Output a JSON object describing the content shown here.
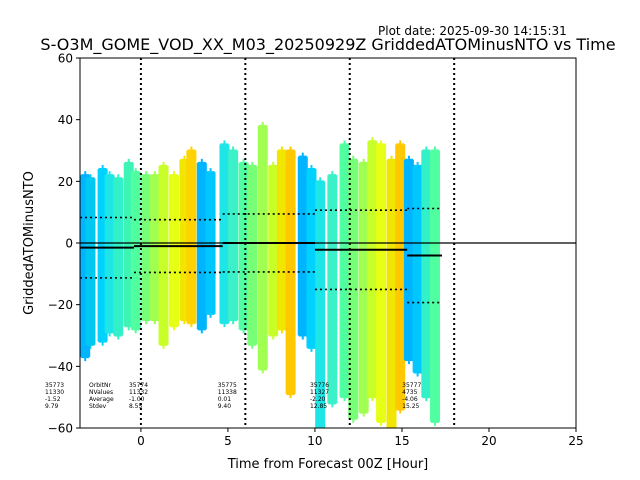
{
  "chart_data": {
    "type": "scatter",
    "plot_date": "Plot date: 2025-09-30 14:15:31",
    "title": "S-O3M_GOME_VOD_XX_M03_20250929Z GriddedATOMinusNTO vs Time",
    "xlabel": "Time from Forecast 00Z [Hour]",
    "ylabel": "GriddedATOMinusNTO",
    "xlim": [
      -3.5,
      25
    ],
    "ylim": [
      -60,
      60
    ],
    "xticks": [
      "0",
      "5",
      "10",
      "15",
      "20",
      "25"
    ],
    "xtick_values": [
      0,
      5,
      10,
      15,
      20,
      25
    ],
    "yticks": [
      "60",
      "40",
      "20",
      "0",
      "−20",
      "−40",
      "−60"
    ],
    "ytick_values": [
      60,
      40,
      20,
      0,
      -20,
      -40,
      -60
    ],
    "zero_line": 0,
    "vertical_dotted_lines": [
      0,
      6,
      12,
      18
    ],
    "mean_line_color": "#000000",
    "orbits": [
      {
        "orbit": "35773",
        "nvalues": "11330",
        "average": "-1.52",
        "stdev": "9.79",
        "x_start": -3.5,
        "x_end": -0.4,
        "mean": -1.52,
        "sd": 9.79
      },
      {
        "orbit": "35774",
        "nvalues": "11332",
        "average": "-1.00",
        "stdev": "8.55",
        "x_start": -0.4,
        "x_end": 4.7,
        "mean": -1.0,
        "sd": 8.55
      },
      {
        "orbit": "35775",
        "nvalues": "11338",
        "average": "0.01",
        "stdev": "9.40",
        "x_start": 4.7,
        "x_end": 10.0,
        "mean": 0.01,
        "sd": 9.4
      },
      {
        "orbit": "35776",
        "nvalues": "11327",
        "average": "-2.20",
        "stdev": "12.85",
        "x_start": 10.0,
        "x_end": 15.3,
        "mean": -2.2,
        "sd": 12.85
      },
      {
        "orbit": "35777",
        "nvalues": "4735",
        "average": "-4.06",
        "stdev": "15.25",
        "x_start": 15.3,
        "x_end": 17.3,
        "mean": -4.06,
        "sd": 15.25
      }
    ],
    "stats_legend": {
      "labels": [
        "OrbitNr",
        "NValues",
        "Average",
        "Stdev"
      ]
    },
    "point_columns": [
      {
        "x": -3.2,
        "min": -37,
        "max": 22,
        "color": "#00b4ff"
      },
      {
        "x": -2.9,
        "min": -33,
        "max": 21,
        "color": "#00c8f0"
      },
      {
        "x": -2.2,
        "min": -32,
        "max": 24,
        "color": "#00d2ff"
      },
      {
        "x": -1.8,
        "min": -29,
        "max": 22,
        "color": "#1ee6e6"
      },
      {
        "x": -1.3,
        "min": -30,
        "max": 21,
        "color": "#32f0c8"
      },
      {
        "x": -0.7,
        "min": -27,
        "max": 26,
        "color": "#3cf5b4"
      },
      {
        "x": -0.3,
        "min": -28,
        "max": 23,
        "color": "#50ffa0"
      },
      {
        "x": 0.3,
        "min": -25,
        "max": 22,
        "color": "#78ff78"
      },
      {
        "x": 0.8,
        "min": -25,
        "max": 22,
        "color": "#a0ff50"
      },
      {
        "x": 1.3,
        "min": -33,
        "max": 25,
        "color": "#c8ff28"
      },
      {
        "x": 1.9,
        "min": -27,
        "max": 22,
        "color": "#e6ff14"
      },
      {
        "x": 2.5,
        "min": -25,
        "max": 27,
        "color": "#f0e600"
      },
      {
        "x": 2.9,
        "min": -26,
        "max": 30,
        "color": "#ffd200"
      },
      {
        "x": 3.5,
        "min": -28,
        "max": 26,
        "color": "#00b4ff"
      },
      {
        "x": 4.0,
        "min": -23,
        "max": 23,
        "color": "#00c8ff"
      },
      {
        "x": 4.8,
        "min": -26,
        "max": 32,
        "color": "#1ee6e6"
      },
      {
        "x": 5.3,
        "min": -25,
        "max": 30,
        "color": "#3cf0c8"
      },
      {
        "x": 5.9,
        "min": -28,
        "max": 26,
        "color": "#50ffa0"
      },
      {
        "x": 6.4,
        "min": -33,
        "max": 25,
        "color": "#78ff78"
      },
      {
        "x": 7.0,
        "min": -41,
        "max": 38,
        "color": "#a0ff50"
      },
      {
        "x": 7.6,
        "min": -30,
        "max": 25,
        "color": "#c8ff28"
      },
      {
        "x": 8.1,
        "min": -28,
        "max": 30,
        "color": "#f0e600"
      },
      {
        "x": 8.6,
        "min": -49,
        "max": 30,
        "color": "#ffc800"
      },
      {
        "x": 9.3,
        "min": -30,
        "max": 28,
        "color": "#00b4ff"
      },
      {
        "x": 9.8,
        "min": -34,
        "max": 24,
        "color": "#00d2ff"
      },
      {
        "x": 10.3,
        "min": -60,
        "max": 20,
        "color": "#1ee6e6"
      },
      {
        "x": 11.0,
        "min": -52,
        "max": 22,
        "color": "#3cf0c8"
      },
      {
        "x": 11.7,
        "min": -50,
        "max": 32,
        "color": "#50ffa0"
      },
      {
        "x": 12.2,
        "min": -57,
        "max": 27,
        "color": "#78ff78"
      },
      {
        "x": 12.8,
        "min": -55,
        "max": 26,
        "color": "#a0ff50"
      },
      {
        "x": 13.3,
        "min": -50,
        "max": 33,
        "color": "#c8ff28"
      },
      {
        "x": 13.8,
        "min": -58,
        "max": 32,
        "color": "#e6ff14"
      },
      {
        "x": 14.4,
        "min": -60,
        "max": 27,
        "color": "#f0e600"
      },
      {
        "x": 14.9,
        "min": -54,
        "max": 32,
        "color": "#ffc800"
      },
      {
        "x": 15.4,
        "min": -38,
        "max": 27,
        "color": "#00b4ff"
      },
      {
        "x": 15.9,
        "min": -42,
        "max": 25,
        "color": "#00c8ff"
      },
      {
        "x": 16.4,
        "min": -50,
        "max": 30,
        "color": "#32f0c8"
      },
      {
        "x": 16.9,
        "min": -58,
        "max": 30,
        "color": "#50ffa0"
      }
    ]
  }
}
